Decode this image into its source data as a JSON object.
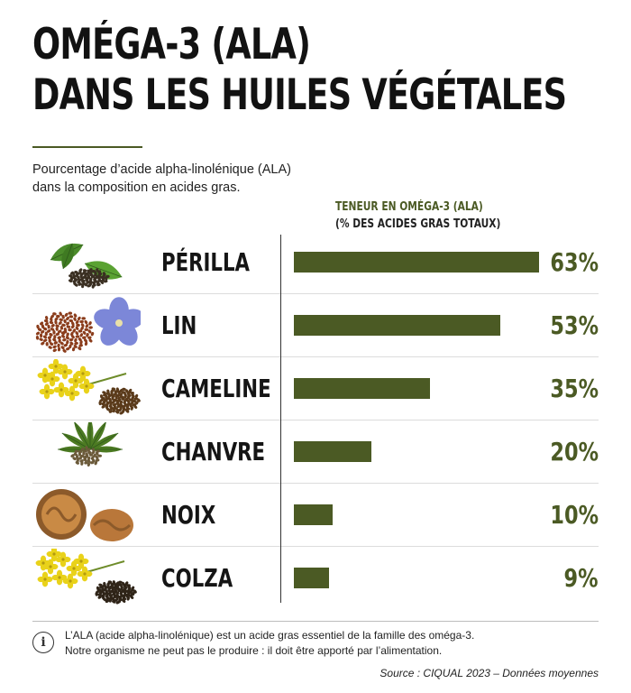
{
  "title_line1": "OMÉGA-3 (ALA)",
  "title_line2": "DANS LES HUILES VÉGÉTALES",
  "subtitle_line1": "Pourcentage d’acide alpha-linolénique (ALA)",
  "subtitle_line2": "dans la composition en acides gras.",
  "column_header_line1": "TENEUR EN OMÉGA-3 (ALA)",
  "column_header_line2": "(% DES ACIDES GRAS TOTAUX)",
  "chart_data": {
    "type": "bar",
    "orientation": "horizontal",
    "categories": [
      "PÉRILLA",
      "LIN",
      "CAMELINE",
      "CHANVRE",
      "NOIX",
      "COLZA"
    ],
    "values": [
      63,
      53,
      35,
      20,
      10,
      9
    ],
    "value_labels": [
      "63%",
      "53%",
      "35%",
      "20%",
      "10%",
      "9%"
    ],
    "xlim": [
      0,
      63
    ],
    "bar_color": "#4b5a24",
    "grid": false,
    "legend": "none"
  },
  "icons": [
    "perilla-leaf-seeds-icon",
    "flax-seeds-flower-icon",
    "camelina-flower-seeds-icon",
    "hemp-leaf-seeds-icon",
    "walnut-icon",
    "rapeseed-flower-seeds-icon"
  ],
  "info_note_line1": "L’ALA (acide alpha-linolénique) est un acide gras essentiel de la famille des oméga-3.",
  "info_note_line2": "Notre organisme ne peut pas le produire : il doit être apporté par l’alimentation.",
  "source": "Source : CIQUAL 2023 – Données moyennes",
  "colors": {
    "accent": "#4b5a24",
    "text": "#151515",
    "separator": "#dcdcdc"
  }
}
